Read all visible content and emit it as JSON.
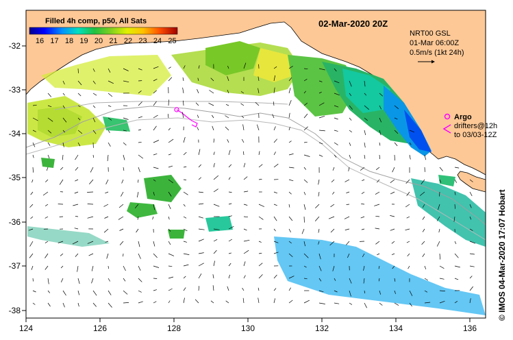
{
  "title": "02-Mar-2020 20Z",
  "colorbar": {
    "title": "Filled 4h comp, p50, All Sats",
    "ticks": [
      "16",
      "17",
      "18",
      "19",
      "20",
      "21",
      "22",
      "23",
      "24",
      "25"
    ]
  },
  "current_info": {
    "line1": "NRT00 GSL",
    "line2": "01-Mar 06:00Z",
    "line3": "0.5m/s (1kt 24h)"
  },
  "legend": {
    "argo_label": "Argo",
    "drifters_line1": "drifters@12h",
    "drifters_line2": "to 03/03-12Z",
    "argo_color": "#ff00ff"
  },
  "credit": "© IMOS 04-Mar-2020 17:07 Hobart",
  "x_ticks": [
    "124",
    "126",
    "128",
    "130",
    "132",
    "134",
    "136"
  ],
  "y_ticks": [
    "-32",
    "-33",
    "-34",
    "-35",
    "-36",
    "-37",
    "-38"
  ],
  "colors": {
    "land": "#fdc896",
    "ocean_blank": "#ffffff",
    "contour": "#a0a0a0"
  },
  "chart_data": {
    "type": "map",
    "lon_range": [
      124,
      136.5
    ],
    "lat_range": [
      -38.2,
      -31.3
    ]
  }
}
